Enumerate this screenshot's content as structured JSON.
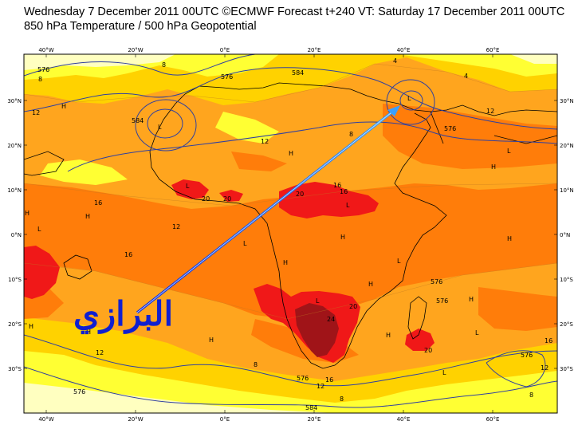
{
  "header": {
    "line1": "Wednesday 7 December 2011 00UTC ©ECMWF Forecast t+240 VT: Saturday 17 December 2011 00UTC",
    "line2": "850 hPa Temperature / 500 hPa Geopotential"
  },
  "axes": {
    "lon_top": [
      "40°W",
      "20°W",
      "0°E",
      "20°E",
      "40°E",
      "60°E"
    ],
    "lon_bottom": [
      "40°W",
      "20°W",
      "0°E",
      "20°E",
      "40°E",
      "60°E"
    ],
    "lat_left": [
      "30°N",
      "20°N",
      "10°N",
      "0°N",
      "10°S",
      "20°S",
      "30°S"
    ],
    "lat_right": [
      "30°N",
      "20°N",
      "10°N",
      "0°N",
      "10°S",
      "20°S",
      "30°S"
    ]
  },
  "contour_labels": {
    "temperature": [
      "8",
      "8",
      "4",
      "4",
      "12",
      "12",
      "12",
      "16",
      "16",
      "16",
      "20",
      "20",
      "20",
      "20",
      "24",
      "8",
      "12",
      "16",
      "12",
      "8",
      "12",
      "16",
      "12",
      "8",
      "8",
      "16",
      "20"
    ],
    "geopotential": [
      "576",
      "576",
      "584",
      "584",
      "576",
      "576",
      "576",
      "576",
      "584",
      "576",
      "576"
    ]
  },
  "pressure_marks": {
    "highs": [
      "H",
      "H",
      "H",
      "H",
      "H",
      "H",
      "H",
      "H",
      "H",
      "H",
      "H",
      "H",
      "H",
      "H"
    ],
    "lows": [
      "L",
      "L",
      "L",
      "L",
      "L",
      "L",
      "L",
      "L",
      "L",
      "L",
      "L"
    ]
  },
  "overlay": {
    "signature": "البرازي",
    "arrow_color": "#1a4cff"
  },
  "palette": {
    "t_lt4": "#ffffc0",
    "t_4_8": "#ffff33",
    "t_8_12": "#ffd200",
    "t_12_16": "#ffa51e",
    "t_16_20": "#ff7d0a",
    "t_20_24": "#f01818",
    "t_gt24": "#a01418",
    "isohypse": "#3040a0",
    "coast": "#000000"
  }
}
